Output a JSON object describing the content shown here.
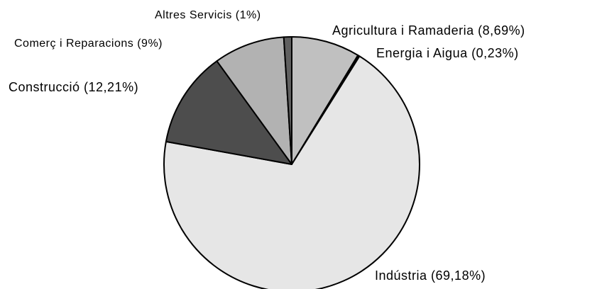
{
  "chart_data": {
    "type": "pie",
    "categories": [
      "Agricultura i Ramaderia (8,69%)",
      "Energia i Aigua (0,23%)",
      "Indústria (69,18%)",
      "Construcció (12,21%)",
      "Comerç i Reparacions (9%)",
      "Altres Servicis (1%)"
    ],
    "values": [
      8.69,
      0.23,
      69.18,
      12.21,
      9,
      1
    ],
    "colors": [
      "#c0c0c0",
      "#000000",
      "#e6e6e6",
      "#4d4d4d",
      "#b2b2b2",
      "#606060"
    ]
  }
}
